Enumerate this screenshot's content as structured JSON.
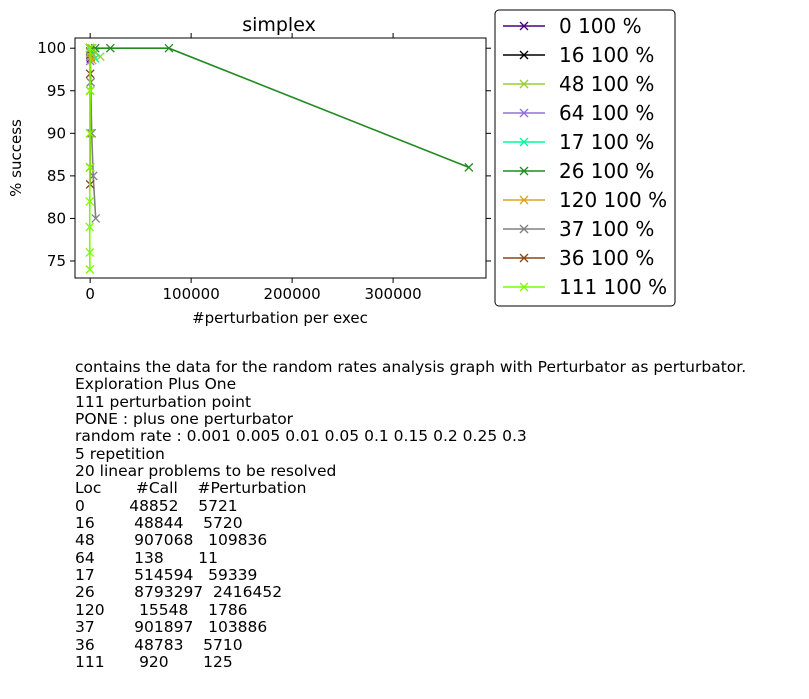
{
  "chart_data": {
    "type": "line",
    "title": "simplex",
    "xlabel": "#perturbation per exec",
    "ylabel": "% success",
    "xlim": [
      -15000,
      392000
    ],
    "ylim": [
      73,
      101.2
    ],
    "xticks": [
      0,
      100000,
      200000,
      300000
    ],
    "xtick_labels": [
      "0",
      "100000",
      "200000",
      "300000"
    ],
    "yticks": [
      75,
      80,
      85,
      90,
      95,
      100
    ],
    "ytick_labels": [
      "75",
      "80",
      "85",
      "90",
      "95",
      "100"
    ],
    "grid": false,
    "legend_position": "outside right",
    "series": [
      {
        "name": "0 100 %",
        "color": "#4b0082",
        "points": [
          [
            0,
            100
          ],
          [
            150,
            99.5
          ],
          [
            300,
            99
          ],
          [
            500,
            98.8
          ]
        ]
      },
      {
        "name": "16 100 %",
        "color": "#000000",
        "points": [
          [
            0,
            100
          ],
          [
            150,
            99.6
          ],
          [
            300,
            99.2
          ],
          [
            450,
            99
          ]
        ]
      },
      {
        "name": "48 100 %",
        "color": "#9acd32",
        "points": [
          [
            0,
            100
          ],
          [
            2000,
            100
          ],
          [
            5000,
            99.5
          ],
          [
            10000,
            99
          ]
        ]
      },
      {
        "name": "64 100 %",
        "color": "#9370db",
        "points": [
          [
            0,
            100
          ],
          [
            3,
            99.5
          ],
          [
            6,
            99
          ],
          [
            10,
            98.5
          ]
        ]
      },
      {
        "name": "17 100 %",
        "color": "#00fa9a",
        "points": [
          [
            0,
            100
          ],
          [
            1000,
            99.6
          ],
          [
            2500,
            99.2
          ],
          [
            5000,
            98.8
          ]
        ]
      },
      {
        "name": "26 100 %",
        "color": "#228b22",
        "points": [
          [
            0,
            100
          ],
          [
            5000,
            100
          ],
          [
            20000,
            100
          ],
          [
            78000,
            100
          ],
          [
            375000,
            86
          ]
        ]
      },
      {
        "name": "120 100 %",
        "color": "#daa520",
        "points": [
          [
            0,
            100
          ],
          [
            300,
            99.5
          ],
          [
            1000,
            99
          ],
          [
            2000,
            98.6
          ]
        ]
      },
      {
        "name": "37 100 %",
        "color": "#808080",
        "points": [
          [
            0,
            100
          ],
          [
            500,
            96
          ],
          [
            1500,
            90
          ],
          [
            3000,
            85
          ],
          [
            5500,
            80
          ]
        ]
      },
      {
        "name": "36 100 %",
        "color": "#8b4513",
        "points": [
          [
            0,
            100
          ],
          [
            0,
            97
          ],
          [
            0,
            95
          ],
          [
            0,
            90
          ],
          [
            0,
            86
          ],
          [
            0,
            84
          ]
        ]
      },
      {
        "name": "111 100 %",
        "color": "#7cfc00",
        "points": [
          [
            0,
            100
          ],
          [
            -50,
            95
          ],
          [
            -100,
            90
          ],
          [
            -200,
            86
          ],
          [
            -300,
            82
          ],
          [
            -400,
            79
          ],
          [
            -300,
            76
          ],
          [
            -200,
            74
          ]
        ]
      }
    ]
  },
  "notes": "contains the data for the random rates analysis graph with Perturbator as perturbator.\nExploration Plus One\n111 perturbation point\nPONE : plus one perturbator\nrandom rate : 0.001 0.005 0.01 0.05 0.1 0.15 0.2 0.25 0.3\n5 repetition\n20 linear problems to be resolved\nLoc       #Call    #Perturbation\n0         48852    5721\n16        48844    5720\n48        907068   109836\n64        138       11\n17        514594   59339\n26        8793297  2416452\n120       15548    1786\n37        901897   103886\n36        48783    5710\n111       920       125"
}
